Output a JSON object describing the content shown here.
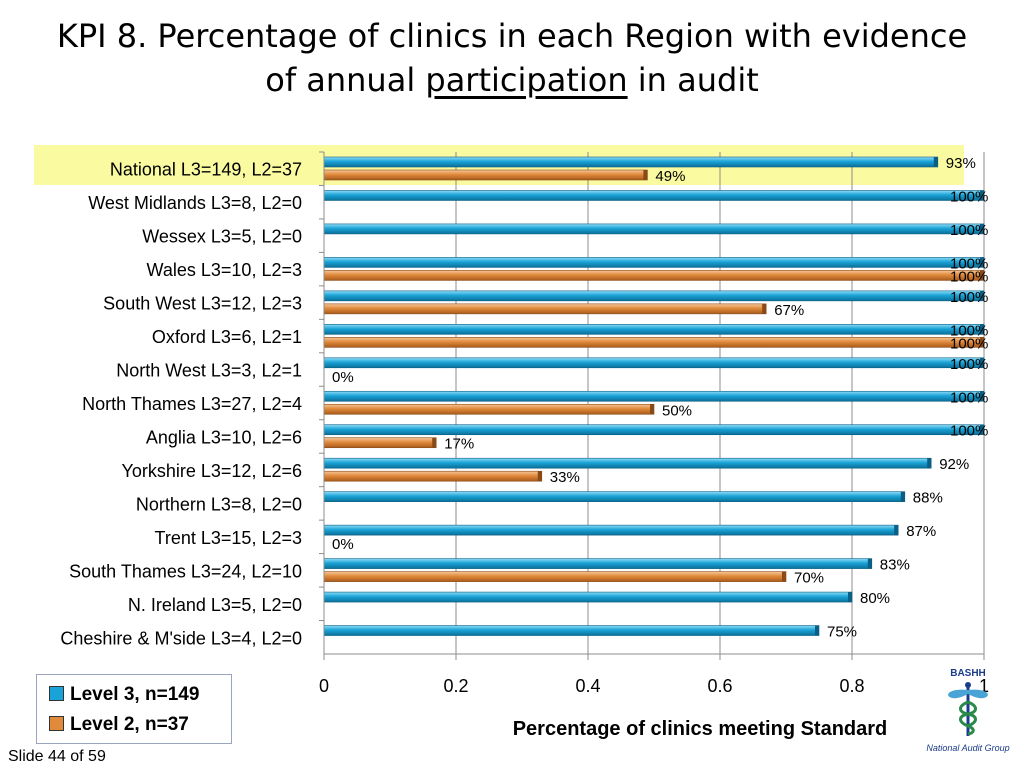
{
  "slide": {
    "title_part1": "KPI  8. Percentage of clinics in each Region with evidence",
    "title_part2a": "of annual ",
    "title_part2b": "participation",
    "title_part2c": " in audit",
    "slide_number": "Slide 44 of 59",
    "logo_name": "BASHH",
    "logo_subtitle": "National Audit Group",
    "logo_icon": "caduceus-icon"
  },
  "chart_data": {
    "type": "bar",
    "orientation": "horizontal",
    "xlabel": "Percentage of clinics meeting Standard",
    "xlim": [
      0,
      1
    ],
    "xticks": [
      "0",
      "0.2",
      "0.4",
      "0.6",
      "0.8",
      "1"
    ],
    "categories": [
      "National L3=149, L2=37",
      "West Midlands L3=8, L2=0",
      "Wessex L3=5, L2=0",
      "Wales L3=10, L2=3",
      "South West L3=12, L2=3",
      "Oxford L3=6, L2=1",
      "North West L3=3, L2=1",
      "North Thames L3=27, L2=4",
      "Anglia L3=10, L2=6",
      "Yorkshire L3=12, L2=6",
      "Northern L3=8, L2=0",
      "Trent L3=15, L2=3",
      "South Thames L3=24, L2=10",
      "N. Ireland L3=5, L2=0",
      "Cheshire & M'side L3=4, L2=0"
    ],
    "highlighted_category": "National L3=149, L2=37",
    "series": [
      {
        "name": "Level 3, n=149",
        "color": "#1aa3d6",
        "values": [
          0.93,
          1,
          1,
          1,
          1,
          1,
          1,
          1,
          1,
          0.92,
          0.88,
          0.87,
          0.83,
          0.8,
          0.75
        ],
        "labels": [
          "93%",
          "100%",
          "100%",
          "100%",
          "100%",
          "100%",
          "100%",
          "100%",
          "100%",
          "92%",
          "88%",
          "87%",
          "83%",
          "80%",
          "75%"
        ]
      },
      {
        "name": "Level 2, n=37",
        "color": "#e08a3c",
        "values": [
          0.49,
          null,
          null,
          1,
          0.67,
          1,
          0,
          0.5,
          0.17,
          0.33,
          null,
          0,
          0.7,
          null,
          null
        ],
        "labels": [
          "49%",
          "",
          "",
          "100%",
          "67%",
          "100%",
          "0%",
          "50%",
          "17%",
          "33%",
          "",
          "0%",
          "70%",
          "",
          ""
        ]
      }
    ],
    "legend_position": "bottom-left",
    "grid": true
  }
}
